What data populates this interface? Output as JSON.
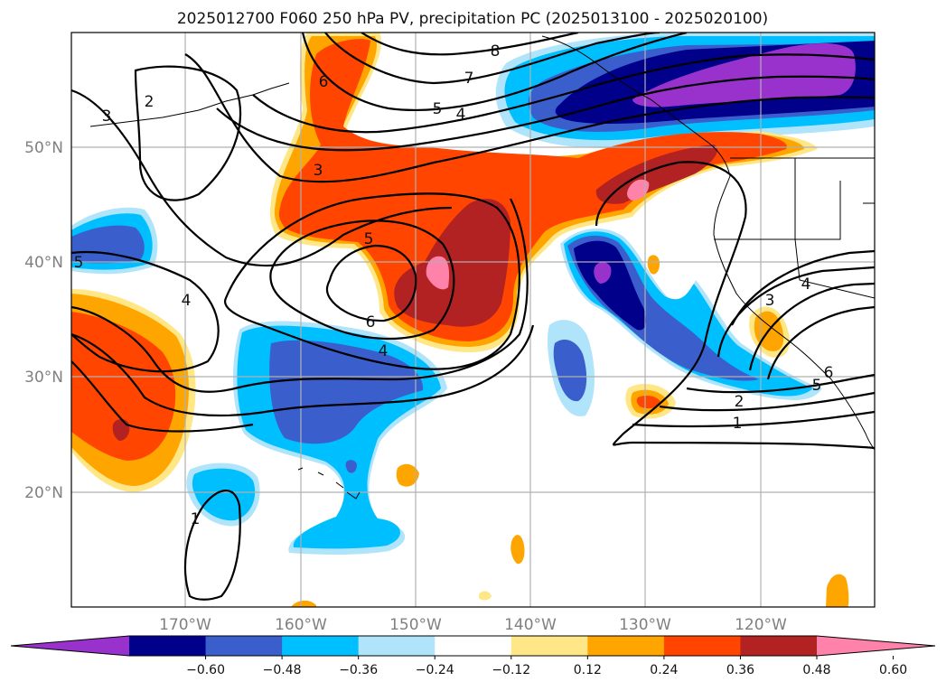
{
  "title": "2025012700 F060 250 hPa PV, precipitation PC (2025013100 - 2025020100)",
  "map": {
    "lat_labels": [
      "50°N",
      "40°N",
      "30°N",
      "20°N"
    ],
    "lon_labels": [
      "170°W",
      "160°W",
      "150°W",
      "140°W",
      "130°W",
      "120°W"
    ]
  },
  "colorbar": {
    "colors": [
      "#9932cc",
      "#00008b",
      "#3a5fcd",
      "#00bfff",
      "#afe4fa",
      "#ffffff",
      "#ffe787",
      "#ffa500",
      "#ff4500",
      "#b22222",
      "#ff82ab"
    ],
    "tick_labels": [
      "−0.60",
      "−0.48",
      "−0.36",
      "−0.24",
      "−0.12",
      "0.12",
      "0.24",
      "0.36",
      "0.48",
      "0.60"
    ]
  },
  "contour_labels": [
    "8",
    "7",
    "6",
    "5",
    "4",
    "3",
    "2",
    "3",
    "5",
    "4",
    "5",
    "6",
    "4",
    "1",
    "4",
    "3",
    "6",
    "5",
    "2",
    "1"
  ]
}
